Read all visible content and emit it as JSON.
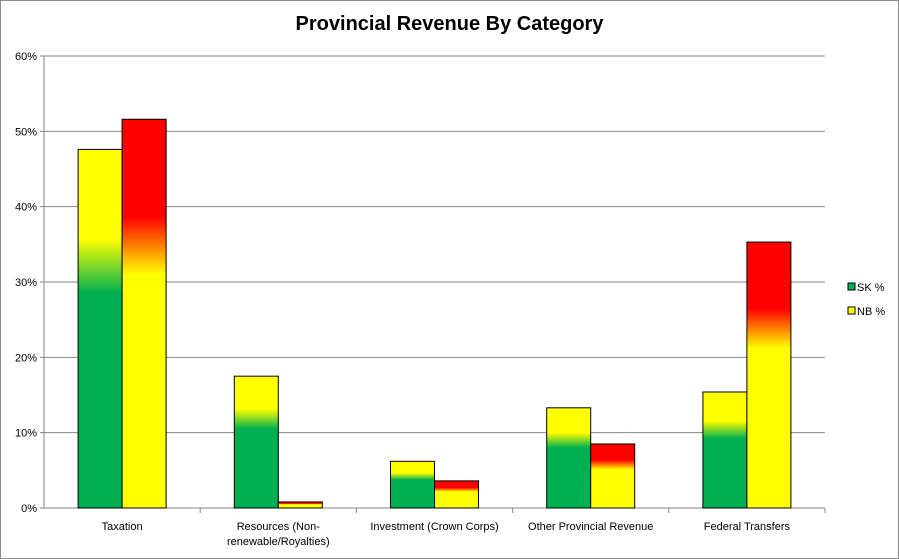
{
  "chart_data": {
    "type": "bar",
    "title": "Provincial Revenue By Category",
    "categories": [
      [
        "Taxation"
      ],
      [
        "Resources (Non-",
        "renewable/Royalties)"
      ],
      [
        "Investment (Crown Corps)"
      ],
      [
        "Other Provincial Revenue"
      ],
      [
        "Federal Transfers"
      ]
    ],
    "series": [
      {
        "name": "SK %",
        "values": [
          47.6,
          17.5,
          6.2,
          13.3,
          15.4
        ],
        "gradient": [
          "#00b050",
          "#ffff00"
        ]
      },
      {
        "name": "NB %",
        "values": [
          51.6,
          0.8,
          3.6,
          8.5,
          35.3
        ],
        "gradient": [
          "#ffff00",
          "#ff0000"
        ]
      }
    ],
    "yticks": [
      "0%",
      "10%",
      "20%",
      "30%",
      "40%",
      "50%",
      "60%"
    ],
    "ylim": [
      0,
      60
    ],
    "grid": true,
    "legend_position": "right",
    "colors": {
      "gridline": "#868686",
      "axis": "#868686",
      "bar_border": "#000000"
    }
  }
}
